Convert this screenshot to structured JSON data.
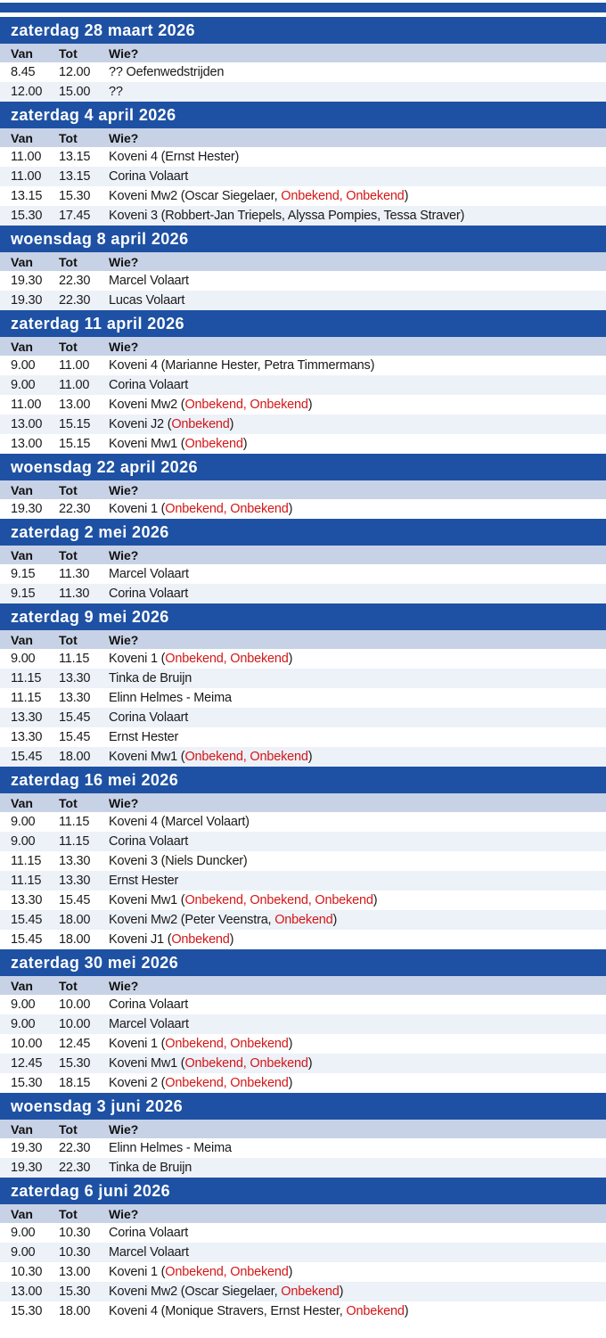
{
  "colors": {
    "header_bg": "#1e51a3",
    "subheader_bg": "#c8d2e6",
    "row_alt_bg": "#edf1f8",
    "row_bg": "#ffffff",
    "header_text": "#ffffff",
    "text": "#1a1a1a",
    "unknown_red": "#d31717"
  },
  "table": {
    "columns": {
      "van": "Van",
      "tot": "Tot",
      "wie": "Wie?"
    },
    "sections": [
      {
        "date": "zaterdag 28 maart 2026",
        "rows": [
          {
            "van": "8.45",
            "tot": "12.00",
            "wie": [
              {
                "t": "?? Oefenwedstrijden",
                "red": false
              }
            ]
          },
          {
            "van": "12.00",
            "tot": "15.00",
            "wie": [
              {
                "t": "??",
                "red": false
              }
            ]
          }
        ]
      },
      {
        "date": "zaterdag 4 april 2026",
        "rows": [
          {
            "van": "11.00",
            "tot": "13.15",
            "wie": [
              {
                "t": "Koveni 4 (Ernst Hester)",
                "red": false
              }
            ]
          },
          {
            "van": "11.00",
            "tot": "13.15",
            "wie": [
              {
                "t": "Corina Volaart",
                "red": false
              }
            ]
          },
          {
            "van": "13.15",
            "tot": "15.30",
            "wie": [
              {
                "t": "Koveni Mw2 (Oscar Siegelaer, ",
                "red": false
              },
              {
                "t": "Onbekend, Onbekend",
                "red": true
              },
              {
                "t": ")",
                "red": false
              }
            ]
          },
          {
            "van": "15.30",
            "tot": "17.45",
            "wie": [
              {
                "t": "Koveni 3 (Robbert-Jan Triepels, Alyssa Pompies, Tessa Straver)",
                "red": false
              }
            ]
          }
        ]
      },
      {
        "date": "woensdag 8 april 2026",
        "rows": [
          {
            "van": "19.30",
            "tot": "22.30",
            "wie": [
              {
                "t": "Marcel Volaart",
                "red": false
              }
            ]
          },
          {
            "van": "19.30",
            "tot": "22.30",
            "wie": [
              {
                "t": "Lucas Volaart",
                "red": false
              }
            ]
          }
        ]
      },
      {
        "date": "zaterdag 11 april 2026",
        "rows": [
          {
            "van": "9.00",
            "tot": "11.00",
            "wie": [
              {
                "t": "Koveni 4 (Marianne Hester, Petra Timmermans)",
                "red": false
              }
            ]
          },
          {
            "van": "9.00",
            "tot": "11.00",
            "wie": [
              {
                "t": "Corina Volaart",
                "red": false
              }
            ]
          },
          {
            "van": "11.00",
            "tot": "13.00",
            "wie": [
              {
                "t": "Koveni Mw2 (",
                "red": false
              },
              {
                "t": "Onbekend, Onbekend",
                "red": true
              },
              {
                "t": ")",
                "red": false
              }
            ]
          },
          {
            "van": "13.00",
            "tot": "15.15",
            "wie": [
              {
                "t": "Koveni J2 (",
                "red": false
              },
              {
                "t": "Onbekend",
                "red": true
              },
              {
                "t": ")",
                "red": false
              }
            ]
          },
          {
            "van": "13.00",
            "tot": "15.15",
            "wie": [
              {
                "t": "Koveni Mw1 (",
                "red": false
              },
              {
                "t": "Onbekend",
                "red": true
              },
              {
                "t": ")",
                "red": false
              }
            ]
          }
        ]
      },
      {
        "date": "woensdag 22 april 2026",
        "rows": [
          {
            "van": "19.30",
            "tot": "22.30",
            "wie": [
              {
                "t": "Koveni 1 (",
                "red": false
              },
              {
                "t": "Onbekend, Onbekend",
                "red": true
              },
              {
                "t": ")",
                "red": false
              }
            ]
          }
        ]
      },
      {
        "date": "zaterdag 2 mei 2026",
        "rows": [
          {
            "van": "9.15",
            "tot": "11.30",
            "wie": [
              {
                "t": "Marcel Volaart",
                "red": false
              }
            ]
          },
          {
            "van": "9.15",
            "tot": "11.30",
            "wie": [
              {
                "t": "Corina Volaart",
                "red": false
              }
            ]
          }
        ]
      },
      {
        "date": "zaterdag 9 mei 2026",
        "rows": [
          {
            "van": "9.00",
            "tot": "11.15",
            "wie": [
              {
                "t": "Koveni 1 (",
                "red": false
              },
              {
                "t": "Onbekend, Onbekend",
                "red": true
              },
              {
                "t": ")",
                "red": false
              }
            ]
          },
          {
            "van": "11.15",
            "tot": "13.30",
            "wie": [
              {
                "t": "Tinka de Bruijn",
                "red": false
              }
            ]
          },
          {
            "van": "11.15",
            "tot": "13.30",
            "wie": [
              {
                "t": "Elinn Helmes - Meima",
                "red": false
              }
            ]
          },
          {
            "van": "13.30",
            "tot": "15.45",
            "wie": [
              {
                "t": "Corina Volaart",
                "red": false
              }
            ]
          },
          {
            "van": "13.30",
            "tot": "15.45",
            "wie": [
              {
                "t": "Ernst Hester",
                "red": false
              }
            ]
          },
          {
            "van": "15.45",
            "tot": "18.00",
            "wie": [
              {
                "t": "Koveni Mw1 (",
                "red": false
              },
              {
                "t": "Onbekend, Onbekend",
                "red": true
              },
              {
                "t": ")",
                "red": false
              }
            ]
          }
        ]
      },
      {
        "date": "zaterdag 16 mei 2026",
        "rows": [
          {
            "van": "9.00",
            "tot": "11.15",
            "wie": [
              {
                "t": "Koveni 4 (Marcel Volaart)",
                "red": false
              }
            ]
          },
          {
            "van": "9.00",
            "tot": "11.15",
            "wie": [
              {
                "t": "Corina Volaart",
                "red": false
              }
            ]
          },
          {
            "van": "11.15",
            "tot": "13.30",
            "wie": [
              {
                "t": "Koveni 3 (Niels Duncker)",
                "red": false
              }
            ]
          },
          {
            "van": "11.15",
            "tot": "13.30",
            "wie": [
              {
                "t": "Ernst Hester",
                "red": false
              }
            ]
          },
          {
            "van": "13.30",
            "tot": "15.45",
            "wie": [
              {
                "t": "Koveni Mw1 (",
                "red": false
              },
              {
                "t": "Onbekend, Onbekend, Onbekend",
                "red": true
              },
              {
                "t": ")",
                "red": false
              }
            ]
          },
          {
            "van": "15.45",
            "tot": "18.00",
            "wie": [
              {
                "t": "Koveni Mw2 (Peter Veenstra, ",
                "red": false
              },
              {
                "t": "Onbekend",
                "red": true
              },
              {
                "t": ")",
                "red": false
              }
            ]
          },
          {
            "van": "15.45",
            "tot": "18.00",
            "wie": [
              {
                "t": "Koveni J1 (",
                "red": false
              },
              {
                "t": "Onbekend",
                "red": true
              },
              {
                "t": ")",
                "red": false
              }
            ]
          }
        ]
      },
      {
        "date": "zaterdag 30 mei 2026",
        "rows": [
          {
            "van": "9.00",
            "tot": "10.00",
            "wie": [
              {
                "t": "Corina Volaart",
                "red": false
              }
            ]
          },
          {
            "van": "9.00",
            "tot": "10.00",
            "wie": [
              {
                "t": "Marcel Volaart",
                "red": false
              }
            ]
          },
          {
            "van": "10.00",
            "tot": "12.45",
            "wie": [
              {
                "t": "Koveni 1 (",
                "red": false
              },
              {
                "t": "Onbekend, Onbekend",
                "red": true
              },
              {
                "t": ")",
                "red": false
              }
            ]
          },
          {
            "van": "12.45",
            "tot": "15.30",
            "wie": [
              {
                "t": "Koveni Mw1 (",
                "red": false
              },
              {
                "t": "Onbekend, Onbekend",
                "red": true
              },
              {
                "t": ")",
                "red": false
              }
            ]
          },
          {
            "van": "15.30",
            "tot": "18.15",
            "wie": [
              {
                "t": "Koveni 2 (",
                "red": false
              },
              {
                "t": "Onbekend, Onbekend",
                "red": true
              },
              {
                "t": ")",
                "red": false
              }
            ]
          }
        ]
      },
      {
        "date": "woensdag 3 juni 2026",
        "rows": [
          {
            "van": "19.30",
            "tot": "22.30",
            "wie": [
              {
                "t": "Elinn Helmes - Meima",
                "red": false
              }
            ]
          },
          {
            "van": "19.30",
            "tot": "22.30",
            "wie": [
              {
                "t": "Tinka de Bruijn",
                "red": false
              }
            ]
          }
        ]
      },
      {
        "date": "zaterdag 6 juni 2026",
        "rows": [
          {
            "van": "9.00",
            "tot": "10.30",
            "wie": [
              {
                "t": "Corina Volaart",
                "red": false
              }
            ]
          },
          {
            "van": "9.00",
            "tot": "10.30",
            "wie": [
              {
                "t": "Marcel Volaart",
                "red": false
              }
            ]
          },
          {
            "van": "10.30",
            "tot": "13.00",
            "wie": [
              {
                "t": "Koveni 1 (",
                "red": false
              },
              {
                "t": "Onbekend, Onbekend",
                "red": true
              },
              {
                "t": ")",
                "red": false
              }
            ]
          },
          {
            "van": "13.00",
            "tot": "15.30",
            "wie": [
              {
                "t": "Koveni Mw2 (Oscar Siegelaer, ",
                "red": false
              },
              {
                "t": "Onbekend",
                "red": true
              },
              {
                "t": ")",
                "red": false
              }
            ]
          },
          {
            "van": "15.30",
            "tot": "18.00",
            "wie": [
              {
                "t": "Koveni 4 (Monique Stravers, Ernst Hester, ",
                "red": false
              },
              {
                "t": "Onbekend",
                "red": true
              },
              {
                "t": ")",
                "red": false
              }
            ]
          }
        ]
      }
    ]
  }
}
